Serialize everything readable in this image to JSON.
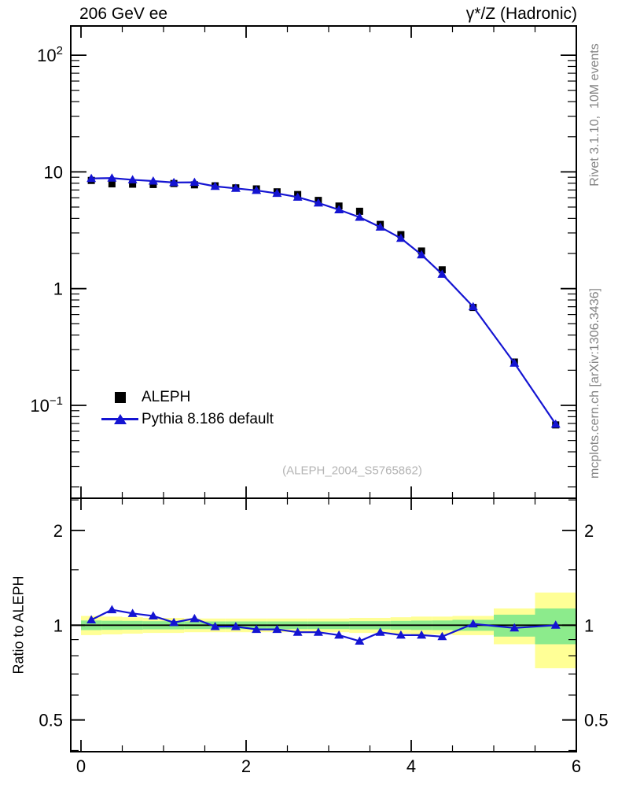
{
  "page": {
    "background": "#ffffff"
  },
  "header": {
    "title_left": "206 GeV ee",
    "title_right": "γ*/Z (Hadronic)"
  },
  "side_labels": {
    "top_right": "Rivet 3.1.10,  10M events",
    "bottom_right": "mcplots.cern.ch [arXiv:1306.3436]"
  },
  "watermark": "(ALEPH_2004_S5765862)",
  "legend": {
    "items": [
      {
        "label": "ALEPH",
        "marker": "square",
        "color": "#000000"
      },
      {
        "label": "Pythia 8.186 default",
        "marker": "triangle-line",
        "color": "#1414d2"
      }
    ]
  },
  "chart_data": {
    "type": "line",
    "title": "206 GeV ee — γ*/Z (Hadronic)",
    "xlabel": "",
    "x": [
      0.125,
      0.375,
      0.625,
      0.875,
      1.125,
      1.375,
      1.625,
      1.875,
      2.125,
      2.375,
      2.625,
      2.875,
      3.125,
      3.375,
      3.625,
      3.875,
      4.125,
      4.375,
      4.75,
      5.25,
      5.75
    ],
    "series": [
      {
        "name": "ALEPH",
        "marker": "square",
        "color": "#000000",
        "values": [
          8.45,
          7.9,
          7.85,
          7.8,
          7.95,
          7.75,
          7.6,
          7.3,
          7.15,
          6.75,
          6.4,
          5.7,
          5.1,
          4.6,
          3.55,
          2.9,
          2.1,
          1.45,
          0.69,
          0.235,
          0.068
        ]
      },
      {
        "name": "Pythia 8.186 default",
        "marker": "triangle",
        "color": "#1414d2",
        "values": [
          8.79,
          8.85,
          8.56,
          8.35,
          8.11,
          8.14,
          7.52,
          7.23,
          6.94,
          6.55,
          6.08,
          5.42,
          4.74,
          4.09,
          3.37,
          2.7,
          1.95,
          1.33,
          0.7,
          0.23,
          0.069
        ]
      }
    ],
    "ratio": {
      "name": "Pythia 8.186 default / ALEPH",
      "values": [
        1.04,
        1.12,
        1.09,
        1.07,
        1.02,
        1.05,
        0.99,
        0.99,
        0.97,
        0.97,
        0.95,
        0.95,
        0.93,
        0.89,
        0.95,
        0.93,
        0.93,
        0.92,
        1.01,
        0.98,
        1.0
      ],
      "band_edges": [
        0,
        0.25,
        0.5,
        0.75,
        1.0,
        1.25,
        1.5,
        1.75,
        2.0,
        2.25,
        2.5,
        2.75,
        3.0,
        3.25,
        3.5,
        3.75,
        4.0,
        4.25,
        4.5,
        5.0,
        5.5,
        6.0
      ],
      "yellow_halfwidth": [
        0.07,
        0.065,
        0.06,
        0.055,
        0.055,
        0.05,
        0.05,
        0.05,
        0.05,
        0.05,
        0.05,
        0.05,
        0.05,
        0.055,
        0.055,
        0.06,
        0.065,
        0.065,
        0.07,
        0.13,
        0.27
      ],
      "green_halfwidth": [
        0.035,
        0.033,
        0.032,
        0.03,
        0.03,
        0.028,
        0.028,
        0.028,
        0.028,
        0.028,
        0.028,
        0.028,
        0.028,
        0.03,
        0.03,
        0.032,
        0.034,
        0.035,
        0.04,
        0.08,
        0.13
      ]
    },
    "axes": {
      "x_range": [
        -0.124,
        6.0
      ],
      "x_tick_labels": [
        0,
        2,
        4,
        6
      ],
      "x_minor_step": 0.5,
      "main_y_scale": "log",
      "main_y_range": [
        0.017,
        178
      ],
      "main_y_tick_labels": [
        {
          "value": 100,
          "base": "10",
          "exp": "2"
        },
        {
          "value": 10,
          "base": "10",
          "exp": ""
        },
        {
          "value": 1,
          "base": "1",
          "exp": ""
        },
        {
          "value": 0.1,
          "base": "10",
          "exp": "−1"
        }
      ],
      "ratio_y_scale": "log",
      "ratio_y_range": [
        0.4,
        2.53
      ],
      "ratio_y_ticks": [
        {
          "value": 2,
          "label": "2"
        },
        {
          "value": 1,
          "label": "1"
        },
        {
          "value": 0.5,
          "label": "0.5"
        }
      ],
      "ratio_y_minor_ticks": [
        0.4,
        0.6,
        0.7,
        0.8,
        0.9,
        1.5,
        2.5
      ],
      "ratio_ylabel": "Ratio to ALEPH",
      "grid": false,
      "legend_position": "left-middle"
    },
    "colors": {
      "band_yellow": "#ffff96",
      "band_green": "#8ceb8c",
      "mc_blue": "#1414d2",
      "frame": "#000000"
    }
  }
}
